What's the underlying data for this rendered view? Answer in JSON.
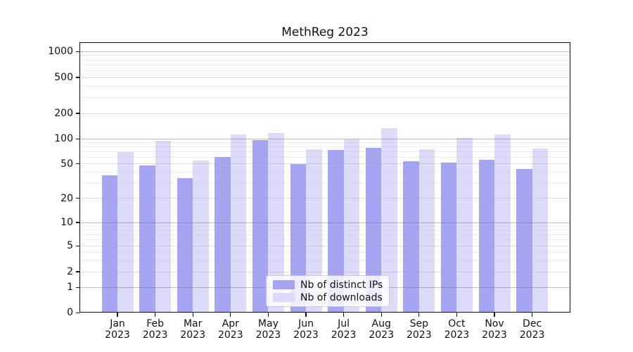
{
  "title": "MethReg 2023",
  "colors": {
    "distinct_ips": "#a5a5f3",
    "downloads": "#dcdcfa",
    "grid_major": "rgba(110,110,110,0.45)",
    "grid_labeled": "rgba(150,150,150,0.30)",
    "grid_minor": "rgba(165,165,165,0.20)",
    "axis": "#111111"
  },
  "legend": {
    "items": [
      "Nb of distinct IPs",
      "Nb of downloads"
    ]
  },
  "chart_data": {
    "type": "bar",
    "title": "MethReg 2023",
    "categories": [
      "Jan",
      "Feb",
      "Mar",
      "Apr",
      "May",
      "Jun",
      "Jul",
      "Aug",
      "Sep",
      "Oct",
      "Nov",
      "Dec"
    ],
    "x_year_label": "2023",
    "series": [
      {
        "name": "Nb of distinct IPs",
        "values": [
          37,
          48,
          34,
          61,
          96,
          50,
          73,
          78,
          54,
          52,
          56,
          44
        ]
      },
      {
        "name": "Nb of downloads",
        "values": [
          69,
          95,
          55,
          112,
          117,
          75,
          98,
          133,
          75,
          103,
          112,
          76
        ]
      }
    ],
    "xlabel": "",
    "ylabel": "",
    "yscale": "symlog",
    "yticks": [
      0,
      1,
      2,
      5,
      10,
      20,
      50,
      100,
      200,
      500,
      1000
    ],
    "ylim": [
      0,
      1300
    ],
    "grid": true,
    "legend_position": "lower center"
  }
}
